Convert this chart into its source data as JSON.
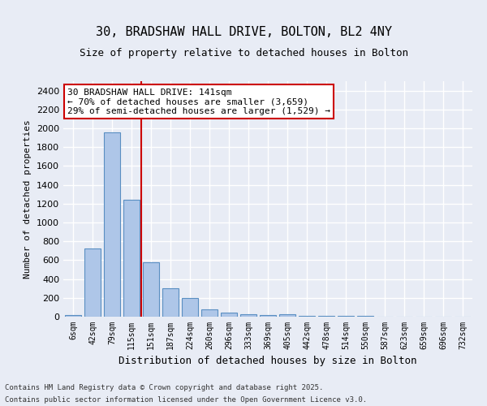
{
  "title_line1": "30, BRADSHAW HALL DRIVE, BOLTON, BL2 4NY",
  "title_line2": "Size of property relative to detached houses in Bolton",
  "xlabel": "Distribution of detached houses by size in Bolton",
  "ylabel": "Number of detached properties",
  "categories": [
    "6sqm",
    "42sqm",
    "79sqm",
    "115sqm",
    "151sqm",
    "187sqm",
    "224sqm",
    "260sqm",
    "296sqm",
    "333sqm",
    "369sqm",
    "405sqm",
    "442sqm",
    "478sqm",
    "514sqm",
    "550sqm",
    "587sqm",
    "623sqm",
    "659sqm",
    "696sqm",
    "732sqm"
  ],
  "values": [
    15,
    720,
    1960,
    1240,
    575,
    305,
    200,
    75,
    40,
    30,
    15,
    30,
    5,
    5,
    5,
    5,
    0,
    0,
    0,
    0,
    0
  ],
  "bar_color": "#aec6e8",
  "bar_edge_color": "#5a8fc2",
  "background_color": "#e8ecf5",
  "grid_color": "#ffffff",
  "vline_x": 4,
  "vline_color": "#cc0000",
  "annotation_text": "30 BRADSHAW HALL DRIVE: 141sqm\n← 70% of detached houses are smaller (3,659)\n29% of semi-detached houses are larger (1,529) →",
  "annotation_box_color": "#ffffff",
  "annotation_box_edge_color": "#cc0000",
  "ylim": [
    0,
    2500
  ],
  "yticks": [
    0,
    200,
    400,
    600,
    800,
    1000,
    1200,
    1400,
    1600,
    1800,
    2000,
    2200,
    2400
  ],
  "footer_line1": "Contains HM Land Registry data © Crown copyright and database right 2025.",
  "footer_line2": "Contains public sector information licensed under the Open Government Licence v3.0."
}
